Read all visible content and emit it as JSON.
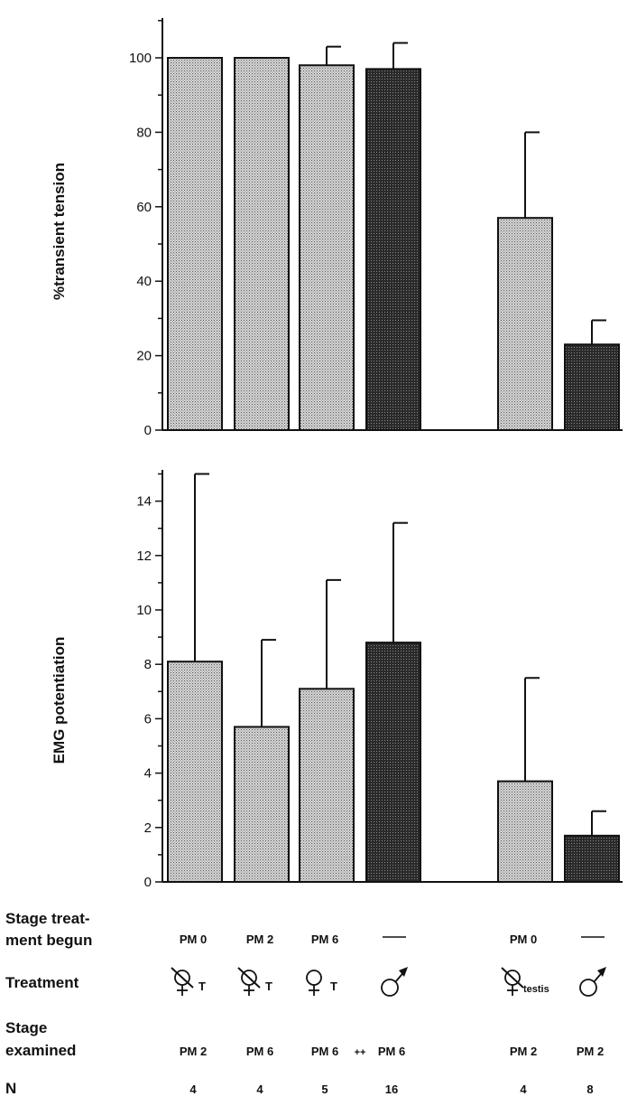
{
  "chart_data": [
    {
      "type": "bar",
      "ylabel": "%transient tension",
      "ylim": [
        0,
        110
      ],
      "yticks": [
        0,
        20,
        40,
        60,
        80,
        100
      ],
      "groups": [
        {
          "id": "g1",
          "value": 100,
          "err": 0,
          "fill": "light"
        },
        {
          "id": "g2",
          "value": 100,
          "err": 0,
          "fill": "light"
        },
        {
          "id": "g3",
          "value": 98,
          "err": 5,
          "fill": "light"
        },
        {
          "id": "g4",
          "value": 97,
          "err": 7,
          "fill": "dark"
        },
        {
          "id": "g5",
          "value": 57,
          "err": 23,
          "fill": "light"
        },
        {
          "id": "g6",
          "value": 23,
          "err": 6.5,
          "fill": "dark"
        }
      ]
    },
    {
      "type": "bar",
      "ylabel": "EMG potentiation",
      "ylim": [
        0,
        15
      ],
      "yticks": [
        0,
        2,
        4,
        6,
        8,
        10,
        12,
        14
      ],
      "groups": [
        {
          "id": "g1",
          "value": 8.1,
          "err": 6.9,
          "fill": "light"
        },
        {
          "id": "g2",
          "value": 5.7,
          "err": 3.2,
          "fill": "light"
        },
        {
          "id": "g3",
          "value": 7.1,
          "err": 4.0,
          "fill": "light"
        },
        {
          "id": "g4",
          "value": 8.8,
          "err": 4.4,
          "fill": "dark"
        },
        {
          "id": "g5",
          "value": 3.7,
          "err": 3.8,
          "fill": "light"
        },
        {
          "id": "g6",
          "value": 1.7,
          "err": 0.9,
          "fill": "dark"
        }
      ]
    }
  ],
  "table": {
    "row_labels": {
      "stage_begun_1": "Stage treat-",
      "stage_begun_2": "ment begun",
      "treatment": "Treatment",
      "stage_examined_1": "Stage",
      "stage_examined_2": "examined",
      "n": "N"
    },
    "stage_begun": [
      "PM 0",
      "PM 2",
      "PM 6",
      "—",
      "PM 0",
      "—"
    ],
    "treatment": [
      {
        "symbol": "crossed-female",
        "suffix": "T"
      },
      {
        "symbol": "crossed-female",
        "suffix": "T"
      },
      {
        "symbol": "female",
        "suffix": "T"
      },
      {
        "symbol": "male",
        "suffix": ""
      },
      {
        "symbol": "crossed-female",
        "suffix": "testis"
      },
      {
        "symbol": "male",
        "suffix": ""
      }
    ],
    "stage_examined": [
      "PM 2",
      "PM 6",
      "PM 6",
      "PM 6",
      "PM 2",
      "PM 2"
    ],
    "significance_mark": "++",
    "n": [
      "4",
      "4",
      "5",
      "16",
      "4",
      "8"
    ]
  },
  "colors": {
    "light_fill": "#bdbdbd",
    "dark_fill": "#2a2a2a",
    "ink": "#111111"
  }
}
